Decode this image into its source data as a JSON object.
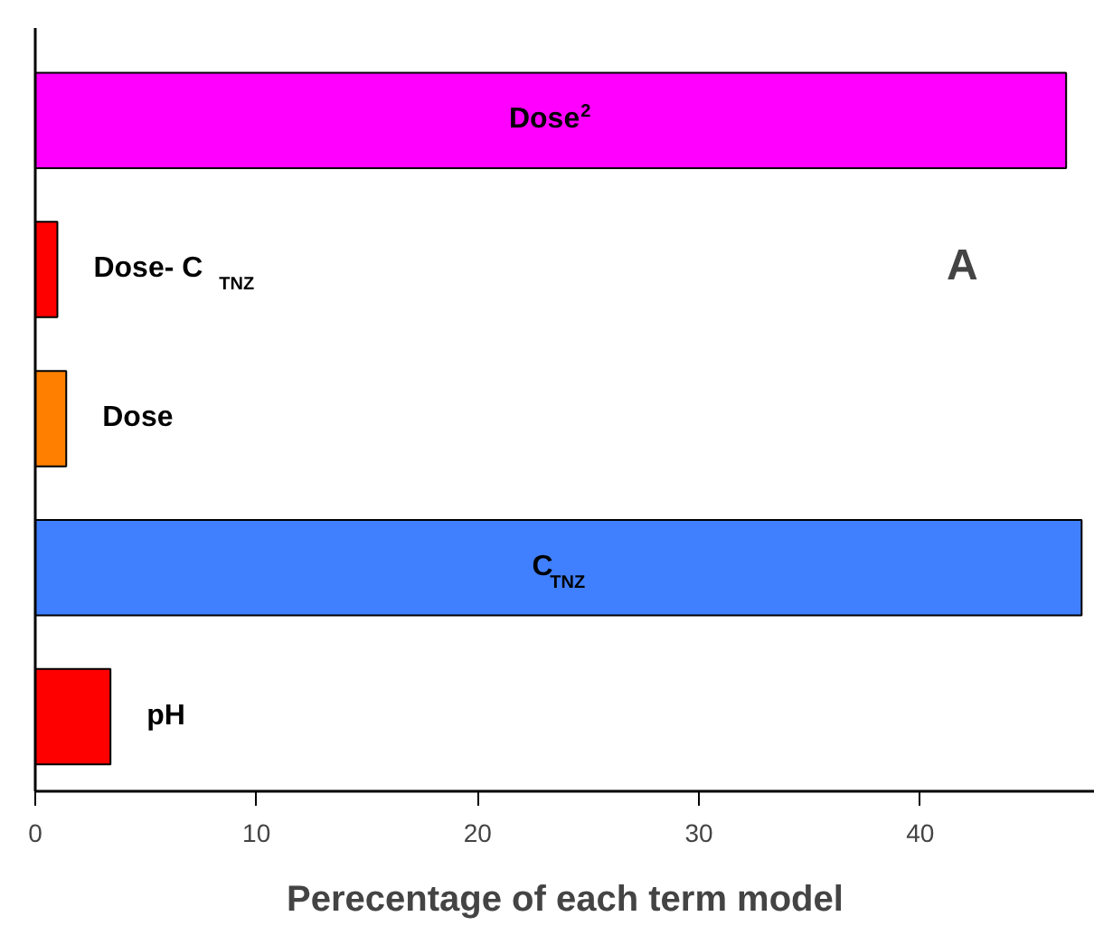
{
  "chart_data": {
    "type": "bar",
    "orientation": "horizontal",
    "xlabel": "Perecentage of each term model",
    "categories": [
      "Dose$^{2}$",
      "Dose- C$_{TNZ}$",
      "Dose",
      "C$_{TNZ}$",
      "pH"
    ],
    "values": [
      46.6,
      1.0,
      1.4,
      47.3,
      3.4
    ],
    "colors": [
      "#ff00ff",
      "#ff0000",
      "#ff8000",
      "#4080ff",
      "#ff0000"
    ],
    "xlim": [
      0,
      47.9
    ],
    "xticks": [
      0,
      10,
      20,
      30,
      40
    ],
    "tick_labels": "x",
    "grid": false,
    "annotations": [
      "A"
    ]
  }
}
